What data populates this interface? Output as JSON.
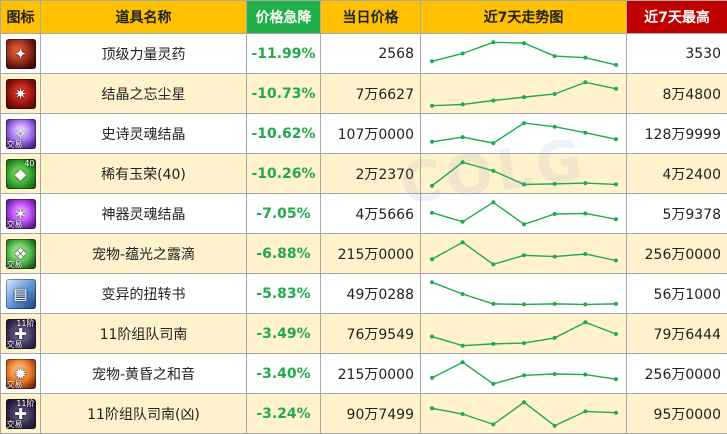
{
  "headers": {
    "icon": "图标",
    "name": "道具名称",
    "drop": "价格急降",
    "price": "当日价格",
    "trend": "近7天走势图",
    "high": "近7天最高"
  },
  "colors": {
    "header_bg": "#ffc000",
    "drop_header_bg": "#22b04a",
    "high_header_bg": "#c00000",
    "drop_text": "#1faa4e",
    "sparkline": "#1faa4e",
    "alt_row_bg": "#fff2cc"
  },
  "rows": [
    {
      "icon": "potion-icon",
      "tag": "",
      "lvl": "",
      "name": "顶级力量灵药",
      "drop": "-11.99%",
      "price": "2568",
      "high": "3530",
      "trend": [
        0.22,
        0.52,
        0.95,
        0.92,
        0.42,
        0.36,
        0.08
      ]
    },
    {
      "icon": "stardust-icon",
      "tag": "",
      "lvl": "",
      "name": "结晶之忘尘星",
      "drop": "-10.73%",
      "price": "7万6627",
      "high": "8万4800",
      "trend": [
        0.05,
        0.1,
        0.25,
        0.38,
        0.5,
        0.95,
        0.7
      ]
    },
    {
      "icon": "soul-crystal-icon",
      "tag": "交易",
      "lvl": "",
      "name": "史诗灵魂结晶",
      "drop": "-10.62%",
      "price": "107万0000",
      "high": "128万9999",
      "trend": [
        0.2,
        0.38,
        0.15,
        0.92,
        0.78,
        0.55,
        0.3
      ]
    },
    {
      "icon": "jade-icon",
      "tag": "",
      "lvl": "40",
      "name": "稀有玉荣(40)",
      "drop": "-10.26%",
      "price": "2万2370",
      "high": "4万2400",
      "trend": [
        0.05,
        0.95,
        0.62,
        0.1,
        0.12,
        0.15,
        0.1
      ]
    },
    {
      "icon": "artifact-soul-icon",
      "tag": "交易",
      "lvl": "",
      "name": "神器灵魂结晶",
      "drop": "-7.05%",
      "price": "4万5666",
      "high": "5万9378",
      "trend": [
        0.55,
        0.2,
        0.95,
        0.1,
        0.5,
        0.52,
        0.3
      ]
    },
    {
      "icon": "dew-icon",
      "tag": "交易",
      "lvl": "",
      "name": "宠物-蕴光之露滴",
      "drop": "-6.88%",
      "price": "215万0000",
      "high": "256万0000",
      "trend": [
        0.3,
        0.95,
        0.1,
        0.45,
        0.4,
        0.5,
        0.25
      ]
    },
    {
      "icon": "scroll-icon",
      "tag": "",
      "lvl": "",
      "name": "变异的扭转书",
      "drop": "-5.83%",
      "price": "49万0288",
      "high": "56万1000",
      "trend": [
        0.95,
        0.5,
        0.12,
        0.1,
        0.12,
        0.1,
        0.12
      ]
    },
    {
      "icon": "compass-icon",
      "tag": "交易",
      "lvl": "11阶",
      "name": "11阶组队司南",
      "drop": "-3.49%",
      "price": "76万9549",
      "high": "79万6444",
      "trend": [
        0.4,
        0.05,
        0.12,
        0.15,
        0.35,
        0.95,
        0.5
      ]
    },
    {
      "icon": "dusk-sound-icon",
      "tag": "交易",
      "lvl": "",
      "name": "宠物-黄昏之和音",
      "drop": "-3.40%",
      "price": "215万0000",
      "high": "256万0000",
      "trend": [
        0.35,
        0.95,
        0.12,
        0.45,
        0.5,
        0.48,
        0.3
      ]
    },
    {
      "icon": "compass-icon",
      "tag": "交易",
      "lvl": "11阶",
      "name": "11阶组队司南(凶)",
      "drop": "-3.24%",
      "price": "90万7499",
      "high": "95万0000",
      "trend": [
        0.72,
        0.5,
        0.1,
        0.95,
        0.05,
        0.6,
        0.55
      ]
    }
  ]
}
